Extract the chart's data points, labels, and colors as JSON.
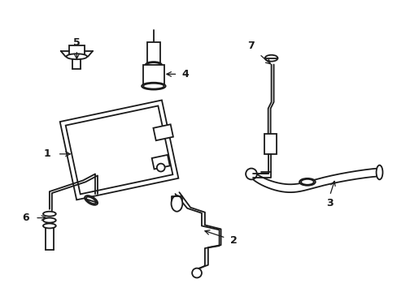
{
  "bg_color": "#ffffff",
  "line_color": "#1a1a1a",
  "lw": 1.3,
  "fs": 9
}
